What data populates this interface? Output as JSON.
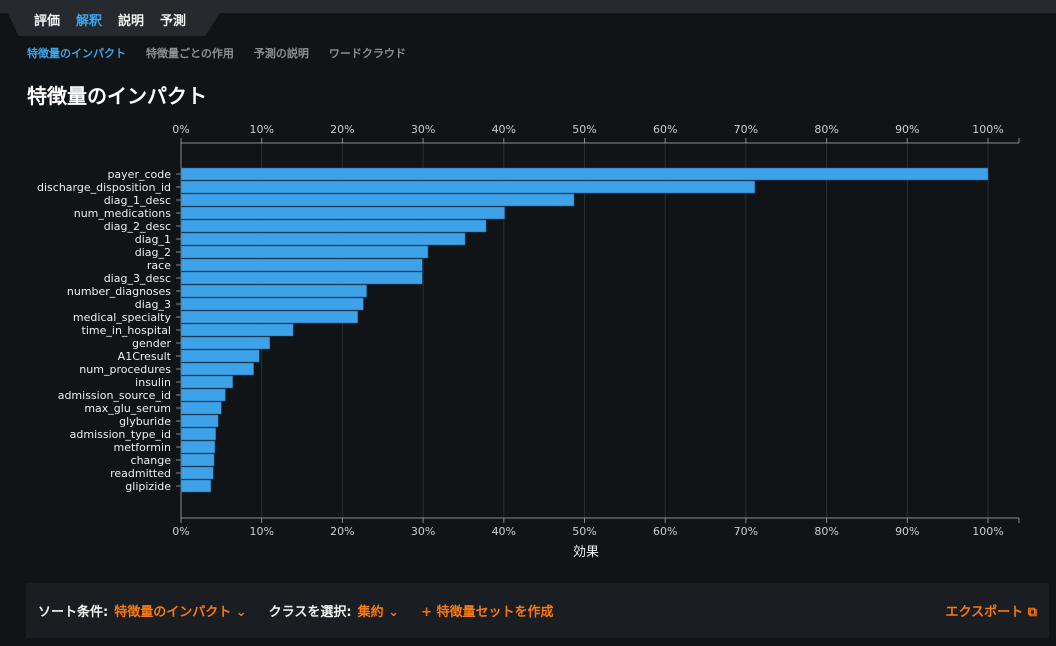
{
  "tabs": [
    "評価",
    "解釈",
    "説明",
    "予測"
  ],
  "subtabs": [
    "特徴量のインパクト",
    "特徴量ごとの作用",
    "予測の説明",
    "ワードクラウド"
  ],
  "page_title": "特徴量のインパクト",
  "chart_data": {
    "type": "bar",
    "orientation": "horizontal",
    "categories": [
      "payer_code",
      "discharge_disposition_id",
      "diag_1_desc",
      "num_medications",
      "diag_2_desc",
      "diag_1",
      "diag_2",
      "race",
      "diag_3_desc",
      "number_diagnoses",
      "diag_3",
      "medical_specialty",
      "time_in_hospital",
      "gender",
      "A1Cresult",
      "num_procedures",
      "insulin",
      "admission_source_id",
      "max_glu_serum",
      "glyburide",
      "admission_type_id",
      "metformin",
      "change",
      "readmitted",
      "glipizide"
    ],
    "values": [
      100,
      71.1,
      48.7,
      40.1,
      37.8,
      35.2,
      30.6,
      29.9,
      29.9,
      23.0,
      22.6,
      21.9,
      13.9,
      11.0,
      9.7,
      9.0,
      6.4,
      5.5,
      5.0,
      4.6,
      4.3,
      4.2,
      4.1,
      4.0,
      3.7
    ],
    "ticks": [
      "0%",
      "10%",
      "20%",
      "30%",
      "40%",
      "50%",
      "60%",
      "70%",
      "80%",
      "90%",
      "100%"
    ],
    "xlabel": "効果",
    "xlim": [
      0,
      104
    ],
    "bar_color": "#3ea2e8"
  },
  "footer": {
    "sort_label": "ソート条件:",
    "sort_value": "特徴量のインパクト",
    "class_label": "クラスを選択:",
    "class_value": "集約",
    "create_set": "特徴量セットを作成",
    "export": "エクスポート"
  }
}
